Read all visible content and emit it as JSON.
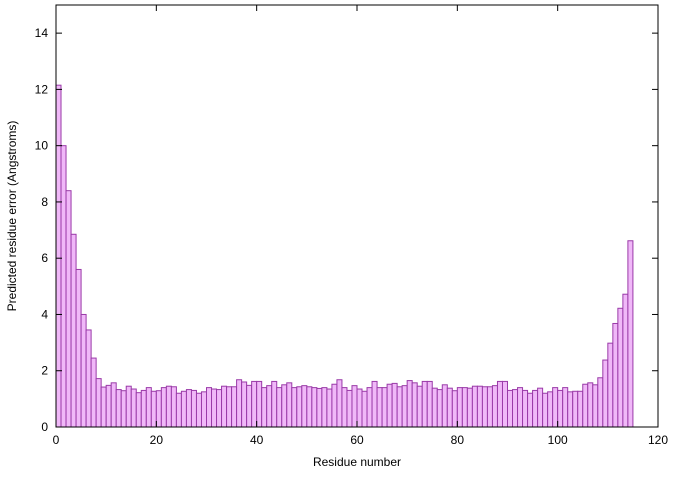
{
  "chart_data": {
    "type": "bar",
    "title": "",
    "xlabel": "Residue number",
    "ylabel": "Predicted residue error (Angstroms)",
    "xlim": [
      0,
      120
    ],
    "ylim": [
      0,
      15
    ],
    "xticks": [
      0,
      20,
      40,
      60,
      80,
      100,
      120
    ],
    "yticks": [
      0,
      2,
      4,
      6,
      8,
      10,
      12,
      14
    ],
    "grid": false,
    "legend": "none",
    "colors": {
      "fill": "#f0b8f8",
      "stroke": "#9a3aa8"
    },
    "x": [
      1,
      2,
      3,
      4,
      5,
      6,
      7,
      8,
      9,
      10,
      11,
      12,
      13,
      14,
      15,
      16,
      17,
      18,
      19,
      20,
      21,
      22,
      23,
      24,
      25,
      26,
      27,
      28,
      29,
      30,
      31,
      32,
      33,
      34,
      35,
      36,
      37,
      38,
      39,
      40,
      41,
      42,
      43,
      44,
      45,
      46,
      47,
      48,
      49,
      50,
      51,
      52,
      53,
      54,
      55,
      56,
      57,
      58,
      59,
      60,
      61,
      62,
      63,
      64,
      65,
      66,
      67,
      68,
      69,
      70,
      71,
      72,
      73,
      74,
      75,
      76,
      77,
      78,
      79,
      80,
      81,
      82,
      83,
      84,
      85,
      86,
      87,
      88,
      89,
      90,
      91,
      92,
      93,
      94,
      95,
      96,
      97,
      98,
      99,
      100,
      101,
      102,
      103,
      104,
      105,
      106,
      107,
      108,
      109,
      110,
      111,
      112,
      113,
      114,
      115
    ],
    "values": [
      12.15,
      10.0,
      8.4,
      6.85,
      5.6,
      4.0,
      3.45,
      2.45,
      1.72,
      1.42,
      1.48,
      1.57,
      1.33,
      1.29,
      1.45,
      1.35,
      1.22,
      1.3,
      1.4,
      1.27,
      1.29,
      1.4,
      1.45,
      1.43,
      1.2,
      1.27,
      1.33,
      1.3,
      1.2,
      1.25,
      1.4,
      1.35,
      1.33,
      1.45,
      1.43,
      1.43,
      1.68,
      1.6,
      1.48,
      1.62,
      1.62,
      1.4,
      1.47,
      1.62,
      1.4,
      1.5,
      1.57,
      1.4,
      1.43,
      1.47,
      1.43,
      1.4,
      1.37,
      1.4,
      1.35,
      1.52,
      1.68,
      1.4,
      1.3,
      1.47,
      1.35,
      1.27,
      1.4,
      1.62,
      1.4,
      1.4,
      1.52,
      1.55,
      1.43,
      1.47,
      1.65,
      1.57,
      1.45,
      1.62,
      1.62,
      1.38,
      1.33,
      1.5,
      1.38,
      1.29,
      1.4,
      1.4,
      1.38,
      1.45,
      1.45,
      1.43,
      1.43,
      1.47,
      1.62,
      1.62,
      1.3,
      1.33,
      1.4,
      1.3,
      1.2,
      1.3,
      1.38,
      1.2,
      1.25,
      1.4,
      1.3,
      1.4,
      1.25,
      1.27,
      1.27,
      1.52,
      1.57,
      1.5,
      1.75,
      2.38,
      2.98,
      3.68,
      4.22,
      4.72,
      6.62
    ]
  }
}
